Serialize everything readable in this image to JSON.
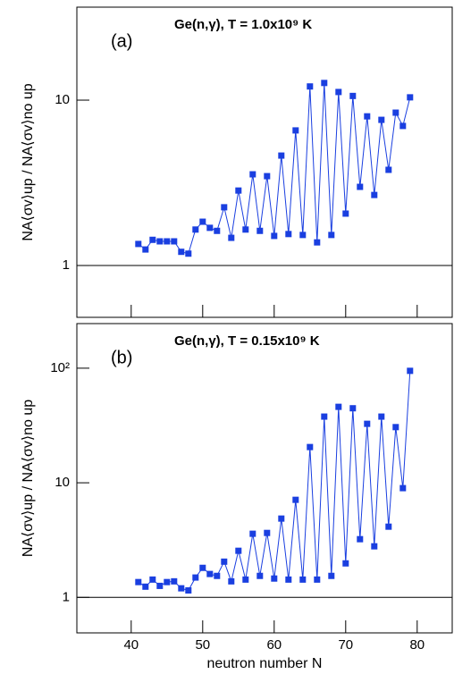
{
  "chart_data": [
    {
      "type": "line",
      "panel_label": "(a)",
      "title": "Ge(n,γ), T = 1.0x10⁹ K",
      "y_label": "NA⟨σv⟩up / NA⟨σv⟩no up",
      "log_y": true,
      "hline": 1,
      "x": [
        41,
        42,
        43,
        44,
        45,
        46,
        47,
        48,
        49,
        50,
        51,
        52,
        53,
        54,
        55,
        56,
        57,
        58,
        59,
        60,
        61,
        62,
        63,
        64,
        65,
        66,
        67,
        68,
        69,
        70,
        71,
        72,
        73,
        74,
        75,
        76,
        77,
        78,
        79
      ],
      "series": [
        {
          "color": "#1a3fe0",
          "values": [
            1.35,
            1.25,
            1.43,
            1.4,
            1.4,
            1.4,
            1.21,
            1.18,
            1.65,
            1.84,
            1.69,
            1.62,
            2.25,
            1.47,
            2.84,
            1.65,
            3.56,
            1.62,
            3.47,
            1.51,
            4.62,
            1.55,
            6.56,
            1.53,
            12.1,
            1.38,
            12.7,
            1.53,
            11.2,
            2.06,
            10.6,
            2.99,
            7.98,
            2.67,
            7.6,
            3.79,
            8.4,
            6.98,
            10.4
          ]
        }
      ],
      "xlim": [
        32.4,
        84.9
      ],
      "xticks": [
        40,
        50,
        60,
        70,
        80
      ],
      "ylim": [
        0.486,
        36.5
      ],
      "yticks": [
        1,
        10
      ]
    },
    {
      "type": "line",
      "panel_label": "(b)",
      "title": "Ge(n,γ), T = 0.15x10⁹ K",
      "y_label": "NA⟨σv⟩up / NA⟨σv⟩no up",
      "x_label": "neutron number N",
      "log_y": true,
      "hline": 1,
      "x": [
        41,
        42,
        43,
        44,
        45,
        46,
        47,
        48,
        49,
        50,
        51,
        52,
        53,
        54,
        55,
        56,
        57,
        58,
        59,
        60,
        61,
        62,
        63,
        64,
        65,
        66,
        67,
        68,
        69,
        70,
        71,
        72,
        73,
        74,
        75,
        76,
        77,
        78,
        79
      ],
      "series": [
        {
          "color": "#1a3fe0",
          "values": [
            1.36,
            1.24,
            1.43,
            1.26,
            1.36,
            1.38,
            1.2,
            1.15,
            1.49,
            1.81,
            1.6,
            1.54,
            2.05,
            1.38,
            2.55,
            1.43,
            3.59,
            1.54,
            3.65,
            1.46,
            4.87,
            1.43,
            7.1,
            1.43,
            20.5,
            1.43,
            37.8,
            1.54,
            46,
            1.98,
            44.7,
            3.22,
            32.7,
            2.79,
            37.8,
            4.14,
            30.6,
            8.98,
            94.8
          ]
        }
      ],
      "xlim": [
        32.4,
        84.9
      ],
      "xticks": [
        40,
        50,
        60,
        70,
        80
      ],
      "ylim": [
        0.49,
        245
      ],
      "yticks": [
        1,
        10,
        {
          "value": 100,
          "label": "10²"
        }
      ]
    }
  ]
}
